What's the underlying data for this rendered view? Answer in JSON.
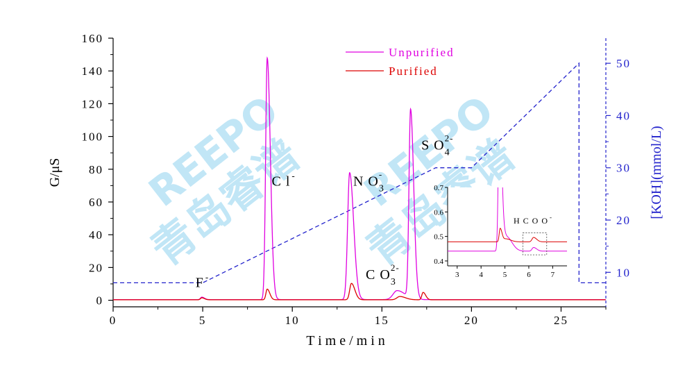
{
  "chart_data": {
    "type": "line",
    "xlabel": "T i m e / m i n",
    "ylabel": "G/μS",
    "y2label": "[KOH](mmol/L)",
    "xlim": [
      0,
      27.5
    ],
    "ylim": [
      -4,
      160
    ],
    "y2lim": [
      3.4,
      54.8
    ],
    "x_ticks": [
      "0",
      "5",
      "10",
      "15",
      "20",
      "25"
    ],
    "y_ticks": [
      "0",
      "20",
      "40",
      "60",
      "80",
      "100",
      "120",
      "140",
      "160"
    ],
    "y2_ticks": [
      "10",
      "20",
      "30",
      "40",
      "50"
    ],
    "colors": {
      "unpurified": "#e000e0",
      "purified": "#dd0000",
      "koh": "#2222cc",
      "axis": "#000000"
    },
    "legend": [
      {
        "label": "Unpurified",
        "color": "#e000e0"
      },
      {
        "label": "Purified",
        "color": "#dd0000"
      }
    ],
    "series": [
      {
        "name": "Unpurified",
        "color": "#e000e0",
        "baseline": 0.4,
        "peaks": [
          {
            "x": 4.95,
            "h": 1.5,
            "w": 0.09
          },
          {
            "x": 8.6,
            "h": 147.5,
            "w": 0.11
          },
          {
            "x": 13.2,
            "h": 77.5,
            "w": 0.14
          },
          {
            "x": 15.85,
            "h": 5.5,
            "w": 0.28
          },
          {
            "x": 16.6,
            "h": 115,
            "w": 0.11
          }
        ]
      },
      {
        "name": "Purified",
        "color": "#dd0000",
        "baseline": 0.3,
        "peaks": [
          {
            "x": 4.95,
            "h": 1.2,
            "w": 0.09
          },
          {
            "x": 8.6,
            "h": 6.5,
            "w": 0.09
          },
          {
            "x": 13.3,
            "h": 10,
            "w": 0.12
          },
          {
            "x": 16.0,
            "h": 2,
            "w": 0.2
          },
          {
            "x": 17.3,
            "h": 4.5,
            "w": 0.09
          }
        ]
      }
    ],
    "koh_gradient": {
      "name": "[KOH]",
      "color": "#2222cc",
      "points": [
        [
          0,
          8
        ],
        [
          5,
          8
        ],
        [
          18,
          30
        ],
        [
          20,
          30
        ],
        [
          26,
          50
        ],
        [
          26,
          8
        ],
        [
          27.5,
          8
        ]
      ]
    },
    "annotations": [
      {
        "id": "f",
        "base": "F",
        "sup": "-",
        "sub": "",
        "x": 4.6,
        "y": 8
      },
      {
        "id": "cl",
        "base": "C l",
        "sup": "-",
        "sub": "",
        "x": 8.85,
        "y": 70
      },
      {
        "id": "no3",
        "base": "N O",
        "sup": "-",
        "sub": "3",
        "x": 13.4,
        "y": 70
      },
      {
        "id": "co3",
        "base": "C O",
        "sup": "2-",
        "sub": "3",
        "x": 14.1,
        "y": 13
      },
      {
        "id": "so4",
        "base": "S O",
        "sup": "2-",
        "sub": "4",
        "x": 17.2,
        "y": 92
      }
    ],
    "inset": {
      "xlim": [
        2.6,
        7.6
      ],
      "ylim": [
        0.38,
        0.7
      ],
      "x_ticks": [
        "3",
        "4",
        "5",
        "6",
        "7"
      ],
      "y_ticks": [
        "0.4",
        "0.5",
        "0.6",
        "0.7"
      ],
      "label_base": "H C O O",
      "label_sup": "-",
      "series": [
        {
          "name": "Unpurified",
          "color": "#e000e0",
          "baseline": 0.44,
          "peaks": [
            {
              "x": 4.77,
              "h": 0.6,
              "w": 0.06
            },
            {
              "x": 5.05,
              "h": 0.06,
              "w": 0.15
            },
            {
              "x": 6.2,
              "h": 0.015,
              "w": 0.08
            }
          ]
        },
        {
          "name": "Purified",
          "color": "#dd0000",
          "baseline": 0.478,
          "peaks": [
            {
              "x": 4.8,
              "h": 0.055,
              "w": 0.05
            },
            {
              "x": 5.05,
              "h": 0.012,
              "w": 0.12
            },
            {
              "x": 6.2,
              "h": 0.018,
              "w": 0.08
            }
          ]
        }
      ],
      "zoom_box": [
        5.75,
        6.75,
        0.425,
        0.515
      ]
    }
  },
  "watermark": {
    "latin": "REEPO",
    "cjk": "青岛睿谱"
  }
}
